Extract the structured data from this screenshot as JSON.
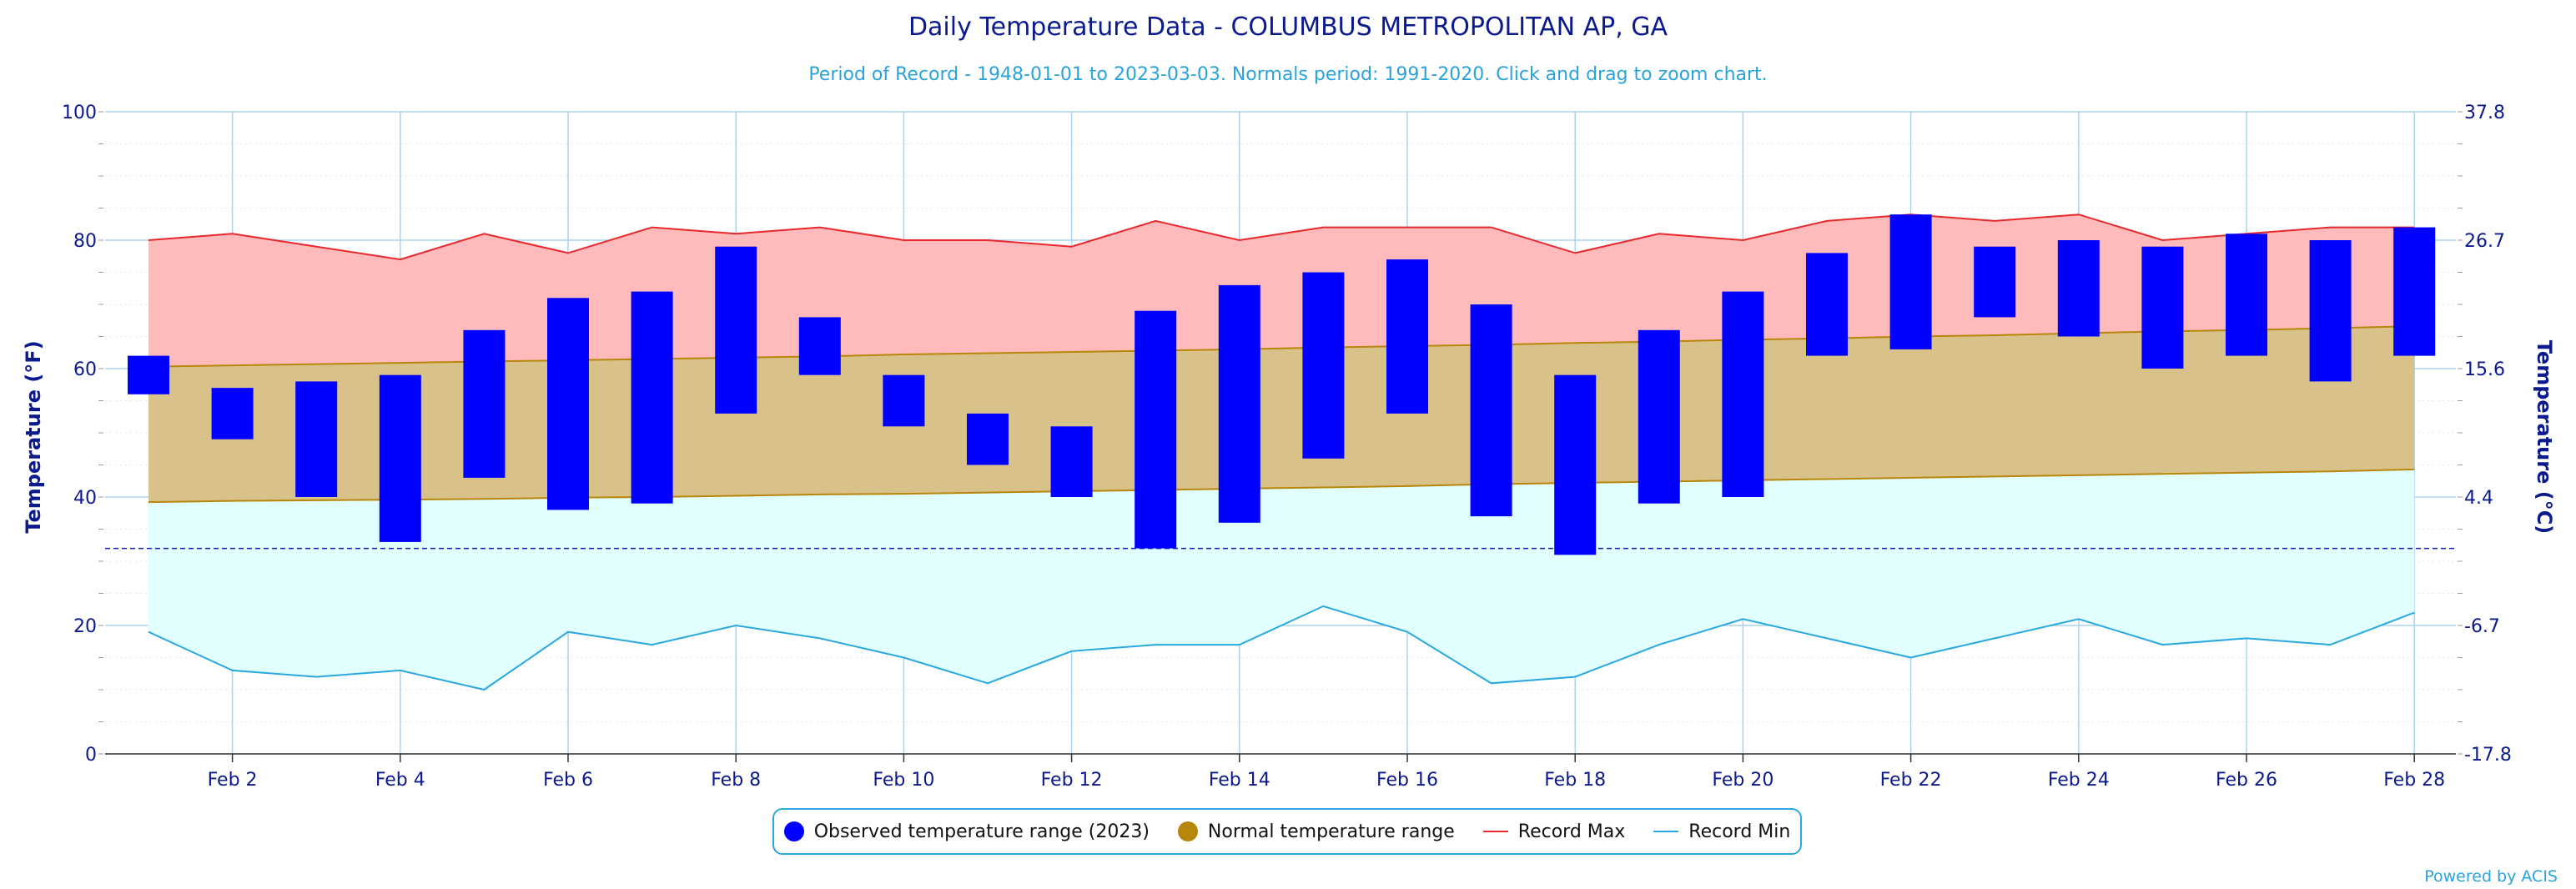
{
  "chart_data": {
    "type": "bar",
    "title": "Daily Temperature Data - COLUMBUS METROPOLITAN AP, GA",
    "subtitle": "Period of Record - 1948-01-01 to 2023-03-03. Normals period: 1991-2020. Click and drag to zoom chart.",
    "ylabel": "Temperature (°F)",
    "ylabel_right": "Temperature (°C)",
    "ylim": [
      0,
      100
    ],
    "y_ticks": [
      "0",
      "20",
      "40",
      "60",
      "80",
      "100"
    ],
    "y_ticks_right": [
      "-17.8",
      "-6.7",
      "4.4",
      "15.6",
      "26.7",
      "37.8"
    ],
    "x_tick_labels": [
      "Feb 2",
      "Feb 4",
      "Feb 6",
      "Feb 8",
      "Feb 10",
      "Feb 12",
      "Feb 14",
      "Feb 16",
      "Feb 18",
      "Feb 20",
      "Feb 22",
      "Feb 24",
      "Feb 26",
      "Feb 28"
    ],
    "days": [
      1,
      2,
      3,
      4,
      5,
      6,
      7,
      8,
      9,
      10,
      11,
      12,
      13,
      14,
      15,
      16,
      17,
      18,
      19,
      20,
      21,
      22,
      23,
      24,
      25,
      26,
      27,
      28
    ],
    "freezing_line": 32,
    "series": [
      {
        "name": "Observed temperature range (2023)",
        "color": "#0000ff",
        "low": [
          56,
          49,
          40,
          33,
          43,
          38,
          39,
          53,
          59,
          51,
          45,
          40,
          32,
          36,
          46,
          53,
          37,
          31,
          39,
          40,
          62,
          63,
          68,
          65,
          60,
          62,
          58,
          62
        ],
        "high": [
          62,
          57,
          58,
          59,
          66,
          71,
          72,
          79,
          68,
          59,
          53,
          51,
          69,
          73,
          75,
          77,
          70,
          59,
          66,
          72,
          78,
          84,
          79,
          80,
          79,
          81,
          80,
          82
        ]
      },
      {
        "name": "Normal temperature range",
        "color": "#b8860b",
        "low": [
          39.2,
          39.4,
          39.5,
          39.6,
          39.7,
          39.9,
          40.0,
          40.2,
          40.4,
          40.5,
          40.7,
          40.9,
          41.1,
          41.3,
          41.5,
          41.7,
          42.0,
          42.2,
          42.4,
          42.6,
          42.8,
          43.0,
          43.2,
          43.4,
          43.6,
          43.8,
          44.0,
          44.3
        ],
        "high": [
          60.3,
          60.5,
          60.7,
          60.9,
          61.1,
          61.3,
          61.5,
          61.7,
          61.9,
          62.2,
          62.4,
          62.6,
          62.8,
          63.0,
          63.3,
          63.5,
          63.7,
          64.0,
          64.2,
          64.5,
          64.7,
          65.0,
          65.2,
          65.5,
          65.8,
          66.0,
          66.3,
          66.6
        ]
      },
      {
        "name": "Record Max",
        "color": "#e8282b",
        "values": [
          80,
          81,
          79,
          77,
          81,
          78,
          82,
          81,
          82,
          80,
          80,
          79,
          83,
          80,
          82,
          82,
          82,
          78,
          81,
          80,
          83,
          84,
          83,
          84,
          80,
          81,
          82,
          82
        ]
      },
      {
        "name": "Record Min",
        "color": "#29a8e0",
        "values": [
          19,
          13,
          12,
          13,
          10,
          19,
          17,
          20,
          18,
          15,
          11,
          16,
          17,
          17,
          23,
          19,
          11,
          12,
          17,
          21,
          18,
          15,
          18,
          21,
          17,
          18,
          17,
          22
        ]
      }
    ]
  },
  "legend": {
    "observed": "Observed temperature range (2023)",
    "normal": "Normal temperature range",
    "record_max": "Record Max",
    "record_min": "Record Min"
  },
  "credit": "Powered by ACIS",
  "colors": {
    "title": "#0b1a8c",
    "subtitle": "#2aa3da",
    "axis_text": "#0b1a8c",
    "grid": "#a9d4ee",
    "record_fill": "#ffbbbb",
    "normal_fill": "#d9c18a",
    "cold_fill": "#e1ffff"
  }
}
